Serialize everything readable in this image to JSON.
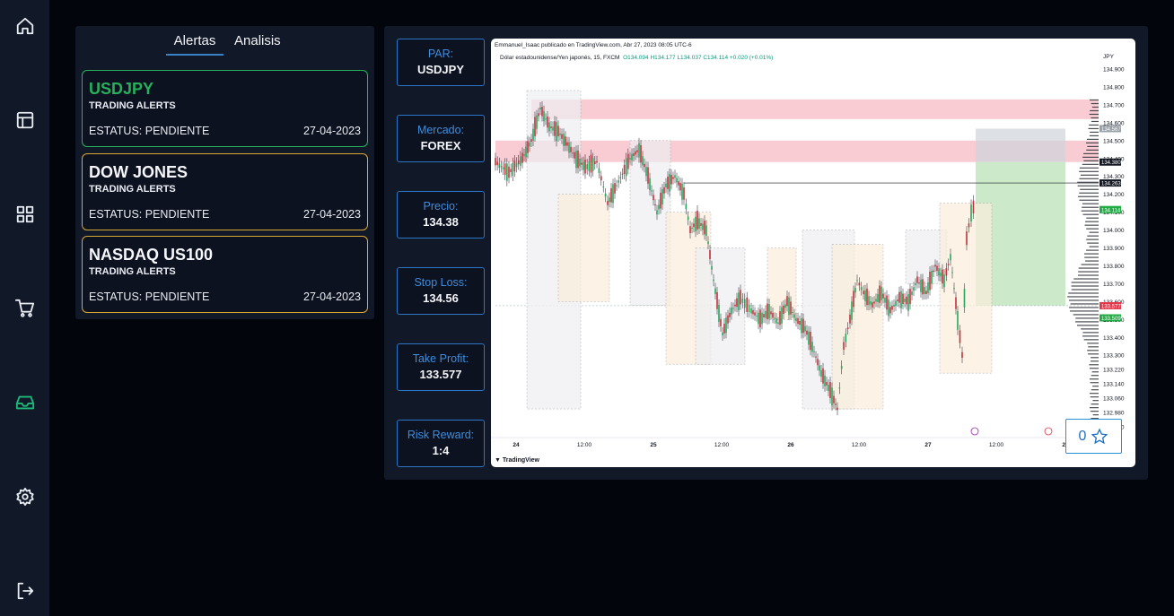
{
  "tabs": {
    "alerts": "Alertas",
    "analysis": "Analisis"
  },
  "alerts": [
    {
      "symbol": "USDJPY",
      "type": "TRADING ALERTS",
      "status": "ESTATUS: PENDIENTE",
      "date": "27-04-2023",
      "border": "#27b35d"
    },
    {
      "symbol": "DOW JONES",
      "type": "TRADING ALERTS",
      "status": "ESTATUS: PENDIENTE",
      "date": "27-04-2023",
      "border": "#d9a934"
    },
    {
      "symbol": "NASDAQ US100",
      "type": "TRADING ALERTS",
      "status": "ESTATUS: PENDIENTE",
      "date": "27-04-2023",
      "border": "#d9a934"
    }
  ],
  "details": [
    {
      "label": "PAR:",
      "value": "USDJPY"
    },
    {
      "label": "Mercado:",
      "value": "FOREX"
    },
    {
      "label": "Precio:",
      "value": "134.38"
    },
    {
      "label": "Stop Loss:",
      "value": "134.56"
    },
    {
      "label": "Take Profit:",
      "value": "133.577"
    },
    {
      "label": "Risk Reward:",
      "value": "1:4"
    }
  ],
  "chart": {
    "header": "Emmanuel_Isaac publicado en TradingView.com, Abr 27, 2023 08:05 UTC-6",
    "symbol_line": "Dólar estadounidense/Yen japonés, 15, FXCM",
    "ohlc": "O134.094  H134.177  L134.037  C134.114  +0.020 (+0.01%)",
    "currency": "JPY",
    "brand": "TradingView",
    "price_ticks": [
      "134.900",
      "134.800",
      "134.700",
      "134.600",
      "134.500",
      "134.400",
      "134.300",
      "134.200",
      "134.100",
      "134.000",
      "133.900",
      "133.800",
      "133.700",
      "133.600",
      "133.500",
      "133.400",
      "133.300",
      "133.220",
      "133.140",
      "133.060",
      "132.980",
      "132.900"
    ],
    "time_ticks": [
      "24",
      "12:00",
      "25",
      "12:00",
      "26",
      "12:00",
      "27",
      "12:00",
      "28"
    ],
    "price_tags": [
      "134.567",
      "134.380",
      "134.263",
      "134.114",
      "134.114",
      "133.577",
      "133.509"
    ],
    "colors": {
      "up": "#26a65b",
      "down": "#c2313a",
      "resistance": "#f7b6c0",
      "take_profit": "#bfe5bd",
      "stop": "#cfd3da"
    }
  },
  "favorite": {
    "count": "0"
  }
}
